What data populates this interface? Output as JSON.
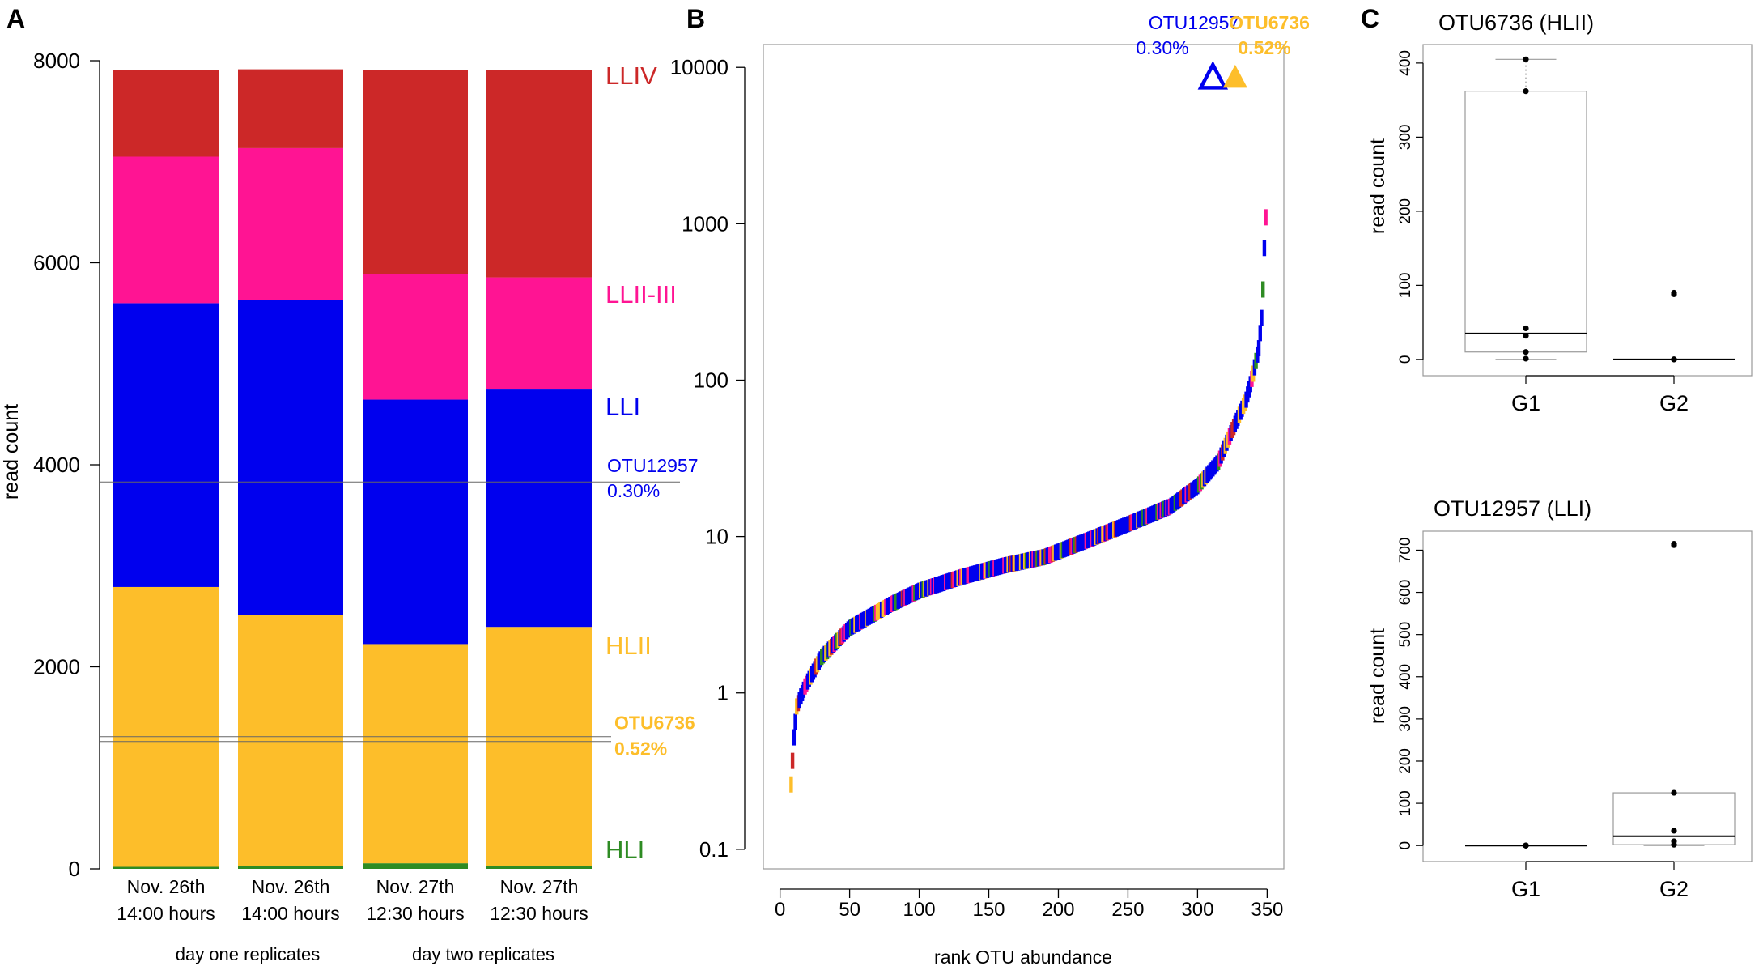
{
  "colors": {
    "HLI": "#2e8b23",
    "HLII": "#fdbe2a",
    "LLI": "#0000ee",
    "LLII_III": "#ff1493",
    "LLIV": "#cc2828",
    "axis": "#000000",
    "box": "#999999"
  },
  "chart_data": [
    {
      "panel": "A",
      "type": "bar",
      "stacked": true,
      "ylabel": "read count",
      "ylim": [
        0,
        8000
      ],
      "yticks": [
        0,
        2000,
        4000,
        6000,
        8000
      ],
      "categories": [
        {
          "line1": "Nov. 26th",
          "line2": "14:00 hours"
        },
        {
          "line1": "Nov. 26th",
          "line2": "14:00 hours"
        },
        {
          "line1": "Nov. 27th",
          "line2": "12:30 hours"
        },
        {
          "line1": "Nov. 27th",
          "line2": "12:30 hours"
        }
      ],
      "groups": [
        "day one replicates",
        "day two replicates"
      ],
      "series": [
        {
          "name": "HLI",
          "colorKey": "HLI",
          "values": [
            20,
            25,
            55,
            25
          ]
        },
        {
          "name": "HLII",
          "colorKey": "HLII",
          "values": [
            2770,
            2490,
            2170,
            2370
          ]
        },
        {
          "name": "LLI",
          "colorKey": "LLI",
          "values": [
            2810,
            3120,
            2420,
            2350
          ]
        },
        {
          "name": "LLII-III",
          "colorKey": "LLII_III",
          "values": [
            1450,
            1500,
            1240,
            1110
          ]
        },
        {
          "name": "LLIV",
          "colorKey": "LLIV",
          "values": [
            860,
            780,
            2025,
            2055
          ]
        }
      ],
      "reference_lines": [
        {
          "label": "OTU12957",
          "pct": "0.30%",
          "value": 3830,
          "colorKey": "LLI"
        },
        {
          "label": "OTU6736",
          "pct": "0.52%",
          "value": 1285,
          "colorKey": "HLII"
        }
      ]
    },
    {
      "panel": "B",
      "type": "scatter",
      "xlabel": "rank OTU abundance",
      "ylabel": "",
      "yscale": "log",
      "xlim": [
        -12,
        362
      ],
      "xticks": [
        0,
        50,
        100,
        150,
        200,
        250,
        300,
        350
      ],
      "ylim": [
        0.075,
        14000
      ],
      "yticks": [
        {
          "v": 0.1,
          "label": "0.1"
        },
        {
          "v": 1,
          "label": "1"
        },
        {
          "v": 10,
          "label": "10"
        },
        {
          "v": 100,
          "label": "100"
        },
        {
          "v": 1000,
          "label": "1000"
        },
        {
          "v": 10000,
          "label": "10000"
        }
      ],
      "curve_knots": [
        [
          8,
          0.26
        ],
        [
          10,
          0.52
        ],
        [
          12,
          0.82
        ],
        [
          18,
          1.1
        ],
        [
          30,
          1.7
        ],
        [
          50,
          2.6
        ],
        [
          80,
          3.7
        ],
        [
          100,
          4.5
        ],
        [
          130,
          5.5
        ],
        [
          160,
          6.5
        ],
        [
          190,
          7.4
        ],
        [
          220,
          9.4
        ],
        [
          250,
          12
        ],
        [
          280,
          15.5
        ],
        [
          300,
          21
        ],
        [
          315,
          30
        ],
        [
          325,
          48
        ],
        [
          335,
          75
        ],
        [
          340,
          110
        ],
        [
          344,
          160
        ],
        [
          346,
          250
        ],
        [
          347,
          380
        ],
        [
          348,
          700
        ],
        [
          349,
          1100
        ]
      ],
      "highlights": [
        {
          "label": "OTU12957",
          "pct": "0.30%",
          "rank": 311,
          "value": 8700,
          "colorKey": "LLI",
          "marker": "open-triangle"
        },
        {
          "label": "OTU6736",
          "pct": "0.52%",
          "rank": 327,
          "value": 8700,
          "colorKey": "HLII",
          "marker": "filled-triangle"
        }
      ]
    },
    {
      "panel": "C",
      "type": "box",
      "title": "OTU6736 (HLII)",
      "ylabel": "read count",
      "categories": [
        "G1",
        "G2"
      ],
      "ylim": [
        -22,
        425
      ],
      "yticks": [
        0,
        100,
        200,
        300,
        400
      ],
      "boxes": [
        {
          "min": 0,
          "q1": 10,
          "median": 35,
          "q3": 362,
          "max": 405,
          "points": [
            405,
            362,
            42,
            32,
            10,
            1
          ]
        },
        {
          "min": 0,
          "q1": 0,
          "median": 0,
          "q3": 0,
          "max": 0,
          "points": [
            90,
            88,
            0,
            0,
            0
          ]
        }
      ]
    },
    {
      "panel": "C",
      "type": "box",
      "title": "OTU12957 (LLI)",
      "ylabel": "read count",
      "categories": [
        "G1",
        "G2"
      ],
      "ylim": [
        -38,
        745
      ],
      "yticks": [
        0,
        100,
        200,
        300,
        400,
        500,
        600,
        700
      ],
      "boxes": [
        {
          "min": 0,
          "q1": 0,
          "median": 0,
          "q3": 0,
          "max": 0,
          "points": [
            0,
            0,
            0,
            0,
            0
          ]
        },
        {
          "min": 0,
          "q1": 2,
          "median": 22,
          "q3": 125,
          "max": 125,
          "points": [
            715,
            712,
            125,
            35,
            10,
            2
          ]
        }
      ]
    }
  ],
  "panel_labels": [
    "A",
    "B",
    "C"
  ],
  "legend_labels": [
    "LLIV",
    "LLII-III",
    "LLI",
    "HLII",
    "HLI"
  ]
}
